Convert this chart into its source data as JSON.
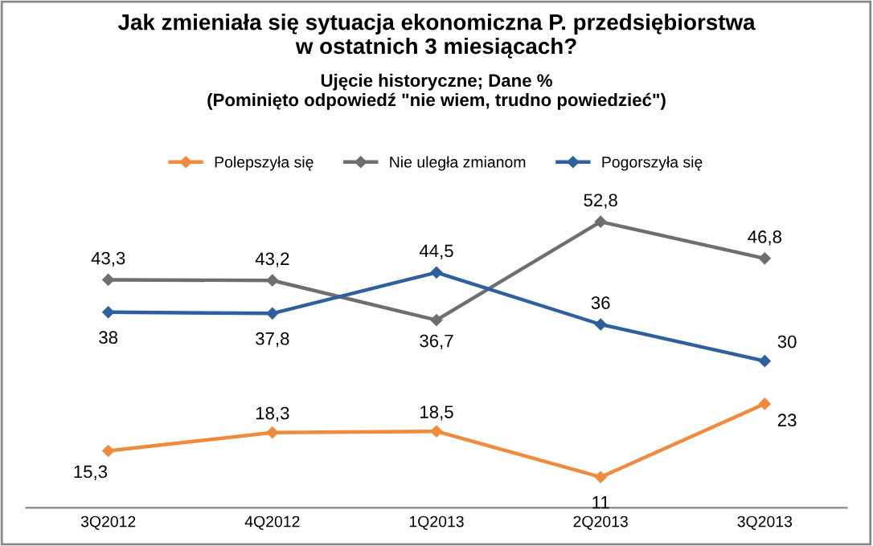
{
  "chart_data": {
    "type": "line",
    "title": "Jak zmieniała się sytuacja ekonomiczna P. przedsiębiorstwa\nw ostatnich 3 miesiącach?",
    "subtitle": "Ujęcie historyczne; Dane %\n(Pominięto odpowiedź \"nie wiem, trudno powiedzieć\")",
    "categories": [
      "3Q2012",
      "4Q2012",
      "1Q2013",
      "2Q2013",
      "3Q2013"
    ],
    "series": [
      {
        "name": "Polepszyła się",
        "color": "#f08a3c",
        "values": [
          15.3,
          18.3,
          18.5,
          11,
          23
        ],
        "value_labels": [
          "15,3",
          "18,3",
          "18,5",
          "11",
          "23"
        ]
      },
      {
        "name": "Nie uległa zmianom",
        "color": "#6e6e6e",
        "values": [
          43.3,
          43.2,
          36.7,
          52.8,
          46.8
        ],
        "value_labels": [
          "43,3",
          "43,2",
          "36,7",
          "52,8",
          "46,8"
        ]
      },
      {
        "name": "Pogorszyła się",
        "color": "#2e5f9e",
        "values": [
          38,
          37.8,
          44.5,
          36,
          30
        ],
        "value_labels": [
          "38",
          "37,8",
          "44,5",
          "36",
          "30"
        ]
      }
    ],
    "legend": "top",
    "marker": "diamond",
    "grid": false,
    "tick_labels": "x"
  }
}
